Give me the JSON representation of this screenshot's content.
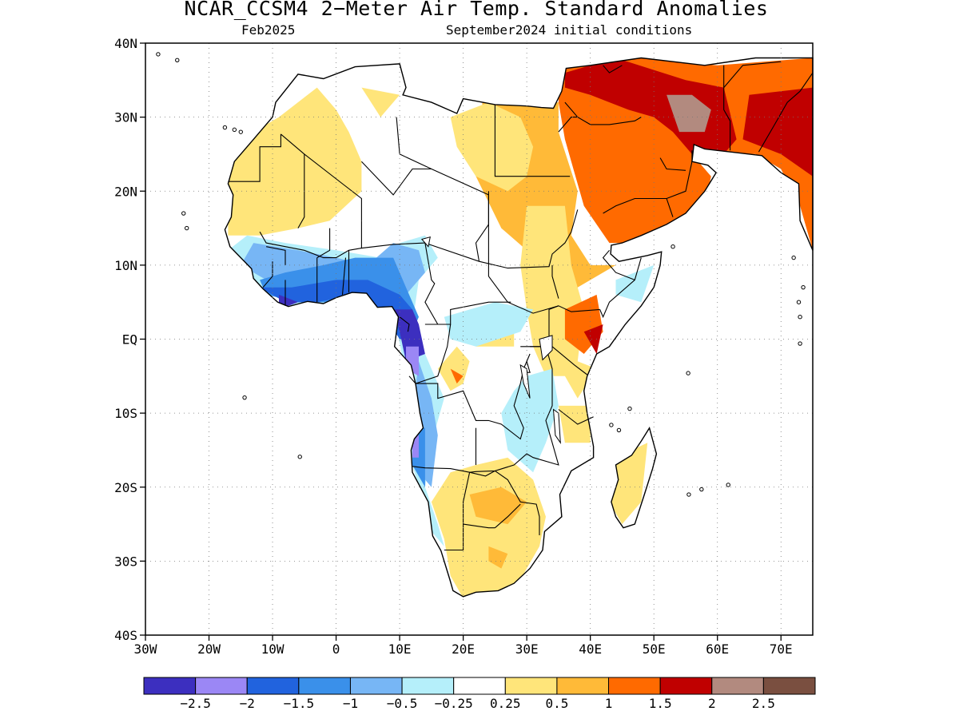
{
  "title": "NCAR_CCSM4 2−Meter Air Temp. Standard Anomalies",
  "subtitle_left": "Feb2025",
  "subtitle_right": "September2024 initial conditions",
  "map": {
    "extent": {
      "lon": [
        -30,
        75
      ],
      "lat": [
        -40,
        40
      ]
    },
    "lat_ticks": [
      {
        "v": 40,
        "label": "40N"
      },
      {
        "v": 30,
        "label": "30N"
      },
      {
        "v": 20,
        "label": "20N"
      },
      {
        "v": 10,
        "label": "10N"
      },
      {
        "v": 0,
        "label": "EQ"
      },
      {
        "v": -10,
        "label": "10S"
      },
      {
        "v": -20,
        "label": "20S"
      },
      {
        "v": -30,
        "label": "30S"
      },
      {
        "v": -40,
        "label": "40S"
      }
    ],
    "lon_ticks": [
      {
        "v": -30,
        "label": "30W"
      },
      {
        "v": -20,
        "label": "20W"
      },
      {
        "v": -10,
        "label": "10W"
      },
      {
        "v": 0,
        "label": "0"
      },
      {
        "v": 10,
        "label": "10E"
      },
      {
        "v": 20,
        "label": "20E"
      },
      {
        "v": 30,
        "label": "30E"
      },
      {
        "v": 40,
        "label": "40E"
      },
      {
        "v": 50,
        "label": "50E"
      },
      {
        "v": 60,
        "label": "60E"
      },
      {
        "v": 70,
        "label": "70E"
      }
    ],
    "grid": "dotted",
    "anomaly_regions": [
      {
        "level": "1.5",
        "pts": [
          [
            35,
            37
          ],
          [
            48,
            38
          ],
          [
            60,
            37
          ],
          [
            75,
            38
          ],
          [
            75,
            12
          ],
          [
            73,
            18
          ],
          [
            70,
            23
          ],
          [
            66,
            25
          ],
          [
            60,
            25
          ],
          [
            57,
            24
          ],
          [
            59,
            22
          ],
          [
            58,
            18
          ],
          [
            54,
            15
          ],
          [
            48,
            13
          ],
          [
            43,
            13
          ],
          [
            39,
            18
          ],
          [
            36,
            27
          ],
          [
            35,
            32
          ]
        ]
      },
      {
        "level": "1",
        "pts": [
          [
            23,
            32
          ],
          [
            35,
            32
          ],
          [
            35,
            28
          ],
          [
            38,
            20
          ],
          [
            37,
            14
          ],
          [
            40,
            10
          ],
          [
            44,
            10
          ],
          [
            38,
            7
          ],
          [
            36,
            3
          ],
          [
            34,
            8
          ],
          [
            31,
            6
          ],
          [
            30,
            12
          ],
          [
            26,
            15
          ],
          [
            22,
            22
          ],
          [
            23,
            28
          ]
        ]
      },
      {
        "level": "2",
        "pts": [
          [
            36,
            36
          ],
          [
            44,
            38
          ],
          [
            55,
            35
          ],
          [
            61,
            34
          ],
          [
            63,
            27
          ],
          [
            60,
            24
          ],
          [
            57,
            24
          ],
          [
            53,
            28
          ],
          [
            50,
            30
          ],
          [
            46,
            31
          ],
          [
            40,
            33
          ],
          [
            36,
            34
          ]
        ]
      },
      {
        "level": "2.5",
        "pts": [
          [
            52,
            33
          ],
          [
            56,
            33
          ],
          [
            59,
            31
          ],
          [
            58,
            28
          ],
          [
            54,
            28
          ]
        ]
      },
      {
        "level": "2",
        "pts": [
          [
            65,
            33
          ],
          [
            75,
            34
          ],
          [
            75,
            22
          ],
          [
            70,
            25
          ],
          [
            64,
            27
          ]
        ]
      },
      {
        "level": "0.5",
        "pts": [
          [
            -17,
            21
          ],
          [
            -15,
            27
          ],
          [
            -9,
            30
          ],
          [
            -3,
            34
          ],
          [
            0,
            31
          ],
          [
            2,
            28
          ],
          [
            4,
            24
          ],
          [
            4,
            20
          ],
          [
            -1,
            16
          ],
          [
            -6,
            15
          ],
          [
            -12,
            14
          ],
          [
            -17,
            14
          ]
        ]
      },
      {
        "level": "0.5",
        "pts": [
          [
            4,
            34
          ],
          [
            10,
            33
          ],
          [
            7,
            30
          ]
        ]
      },
      {
        "level": "0.5",
        "pts": [
          [
            18,
            30
          ],
          [
            24,
            32
          ],
          [
            29,
            30
          ],
          [
            31,
            26
          ],
          [
            30,
            22
          ],
          [
            27,
            20
          ],
          [
            22,
            22
          ],
          [
            19,
            26
          ]
        ]
      },
      {
        "level": "0.5",
        "pts": [
          [
            30,
            18
          ],
          [
            36,
            18
          ],
          [
            37,
            10
          ],
          [
            39,
            4
          ],
          [
            38,
            -3
          ],
          [
            41,
            -4
          ],
          [
            38,
            -8
          ],
          [
            36,
            -5
          ],
          [
            33,
            -5
          ],
          [
            31,
            -1
          ],
          [
            30,
            4
          ],
          [
            29,
            10
          ]
        ]
      },
      {
        "level": "0.5",
        "pts": [
          [
            16,
            -4
          ],
          [
            18,
            -7
          ],
          [
            20,
            -6
          ],
          [
            21,
            -3
          ],
          [
            19,
            -1
          ]
        ]
      },
      {
        "level": "0.5",
        "pts": [
          [
            18,
            -18
          ],
          [
            22,
            -17
          ],
          [
            27,
            -16
          ],
          [
            31,
            -19
          ],
          [
            33,
            -24
          ],
          [
            32,
            -28
          ],
          [
            28,
            -34
          ],
          [
            20,
            -35
          ],
          [
            18,
            -32
          ],
          [
            17,
            -27
          ],
          [
            15,
            -22
          ]
        ]
      },
      {
        "level": "1",
        "pts": [
          [
            21,
            -21
          ],
          [
            26,
            -20
          ],
          [
            30,
            -22
          ],
          [
            27,
            -25
          ],
          [
            22,
            -24
          ]
        ]
      },
      {
        "level": "1",
        "pts": [
          [
            24,
            -28
          ],
          [
            27,
            -29
          ],
          [
            26,
            -31
          ],
          [
            24,
            -30
          ]
        ]
      },
      {
        "level": "0.5",
        "pts": [
          [
            22,
            -1
          ],
          [
            28,
            -1
          ],
          [
            28,
            3
          ],
          [
            24,
            3
          ]
        ]
      },
      {
        "level": "0.5",
        "pts": [
          [
            35,
            -9
          ],
          [
            40,
            -9
          ],
          [
            40,
            -14
          ],
          [
            36,
            -14
          ]
        ]
      },
      {
        "level": "0.5",
        "pts": [
          [
            44,
            -16
          ],
          [
            49,
            -14
          ],
          [
            48,
            -22
          ],
          [
            45,
            -25
          ],
          [
            43,
            -22
          ]
        ]
      },
      {
        "level": "1.5",
        "pts": [
          [
            36,
            4
          ],
          [
            41,
            6
          ],
          [
            42,
            1
          ],
          [
            39,
            -2
          ],
          [
            36,
            0
          ]
        ]
      },
      {
        "level": "2",
        "pts": [
          [
            39,
            1
          ],
          [
            42,
            2
          ],
          [
            41,
            -2
          ]
        ]
      },
      {
        "level": "1.5",
        "pts": [
          [
            18,
            -4
          ],
          [
            20,
            -5
          ],
          [
            19,
            -6
          ]
        ]
      },
      {
        "level": "-0.25",
        "pts": [
          [
            -14,
            14
          ],
          [
            -8,
            13
          ],
          [
            0,
            12
          ],
          [
            7,
            11
          ],
          [
            10,
            13
          ],
          [
            14,
            14
          ],
          [
            16,
            11
          ],
          [
            13,
            8
          ],
          [
            12,
            2
          ],
          [
            14,
            -2
          ],
          [
            17,
            -8
          ],
          [
            15,
            -14
          ],
          [
            14,
            -20
          ],
          [
            16,
            -25
          ],
          [
            17,
            -28
          ],
          [
            15,
            -26
          ],
          [
            12,
            -17
          ],
          [
            11,
            -5
          ],
          [
            9,
            4
          ],
          [
            5,
            6
          ],
          [
            0,
            5
          ],
          [
            -6,
            4
          ],
          [
            -12,
            7
          ],
          [
            -17,
            12
          ]
        ]
      },
      {
        "level": "-0.25",
        "pts": [
          [
            30,
            -5
          ],
          [
            34,
            -4
          ],
          [
            35,
            -9
          ],
          [
            33,
            -14
          ],
          [
            31,
            -18
          ],
          [
            27,
            -15
          ],
          [
            26,
            -10
          ],
          [
            28,
            -7
          ]
        ]
      },
      {
        "level": "-0.25",
        "pts": [
          [
            17,
            3
          ],
          [
            25,
            5
          ],
          [
            31,
            4
          ],
          [
            29,
            1
          ],
          [
            22,
            -1
          ],
          [
            18,
            0
          ]
        ]
      },
      {
        "level": "-0.25",
        "pts": [
          [
            44,
            8
          ],
          [
            50,
            10
          ],
          [
            48,
            5
          ],
          [
            44,
            6
          ]
        ]
      },
      {
        "level": "-0.5",
        "pts": [
          [
            -13,
            13
          ],
          [
            -6,
            12
          ],
          [
            0,
            11
          ],
          [
            5,
            10
          ],
          [
            9,
            13
          ],
          [
            13,
            12
          ],
          [
            14,
            9
          ],
          [
            11,
            6
          ],
          [
            9,
            3
          ],
          [
            7,
            5
          ],
          [
            3,
            6
          ],
          [
            -2,
            5
          ],
          [
            -7,
            5
          ],
          [
            -11,
            8
          ],
          [
            -15,
            10
          ]
        ]
      },
      {
        "level": "-0.5",
        "pts": [
          [
            13,
            -3
          ],
          [
            15,
            -8
          ],
          [
            16,
            -13
          ],
          [
            15,
            -20
          ],
          [
            12,
            -17
          ],
          [
            12,
            -10
          ]
        ]
      },
      {
        "level": "-1",
        "pts": [
          [
            -12,
            8
          ],
          [
            -8,
            9
          ],
          [
            -2,
            10
          ],
          [
            3,
            11
          ],
          [
            9,
            11
          ],
          [
            11,
            7
          ],
          [
            13,
            3
          ],
          [
            12,
            1
          ],
          [
            9,
            3
          ],
          [
            5,
            5
          ],
          [
            0,
            5
          ],
          [
            -6,
            5
          ],
          [
            -11,
            6
          ]
        ]
      },
      {
        "level": "-1",
        "pts": [
          [
            12,
            -12
          ],
          [
            14,
            -12
          ],
          [
            14,
            -20
          ],
          [
            12,
            -17
          ]
        ]
      },
      {
        "level": "-1.5",
        "pts": [
          [
            -12,
            7
          ],
          [
            -7,
            7
          ],
          [
            0,
            8
          ],
          [
            5,
            8
          ],
          [
            10,
            6
          ],
          [
            12,
            4
          ],
          [
            13,
            0
          ],
          [
            10,
            0
          ],
          [
            7,
            4
          ],
          [
            3,
            6
          ],
          [
            -3,
            5
          ],
          [
            -8,
            5
          ]
        ]
      },
      {
        "level": "-2.5",
        "pts": [
          [
            -9,
            6
          ],
          [
            -6,
            5
          ],
          [
            -9,
            4
          ]
        ]
      },
      {
        "level": "-2.5",
        "pts": [
          [
            9,
            4
          ],
          [
            12,
            4
          ],
          [
            13,
            2
          ],
          [
            14,
            -2
          ],
          [
            11,
            -3
          ],
          [
            10,
            1
          ]
        ]
      },
      {
        "level": "-2",
        "pts": [
          [
            11,
            -1
          ],
          [
            13,
            -1
          ],
          [
            13,
            -5
          ],
          [
            11,
            -4
          ]
        ]
      },
      {
        "level": "-2",
        "pts": [
          [
            12,
            -13
          ],
          [
            13,
            -13
          ],
          [
            13,
            -16
          ],
          [
            12,
            -16
          ]
        ]
      }
    ]
  },
  "colorbar": {
    "colors": [
      "#3c2fbf",
      "#9b87f5",
      "#2163de",
      "#3a90ea",
      "#77b6f5",
      "#b5effa",
      "#ffffff",
      "#ffe57a",
      "#ffba38",
      "#ff6a00",
      "#c00000",
      "#b28a7f",
      "#7a4f40"
    ],
    "labels": [
      "−2.5",
      "−2",
      "−1.5",
      "−1",
      "−0.5",
      "−0.25",
      "0.25",
      "0.5",
      "1",
      "1.5",
      "2",
      "2.5"
    ]
  },
  "level_colors": {
    "-2.5": "#3c2fbf",
    "-2": "#9b87f5",
    "-1.5": "#2163de",
    "-1": "#3a90ea",
    "-0.5": "#77b6f5",
    "-0.25": "#b5effa",
    "0.5": "#ffe57a",
    "1": "#ffba38",
    "1.5": "#ff6a00",
    "2": "#c00000",
    "2.5": "#b28a7f",
    "3": "#7a4f40"
  }
}
